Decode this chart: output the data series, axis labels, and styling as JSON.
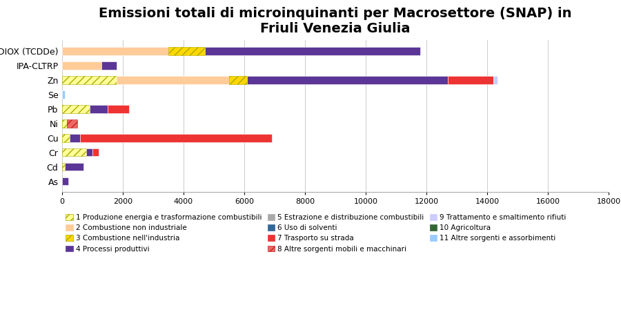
{
  "title": "Emissioni totali di microinquinanti per Macrosettore (SNAP) in\nFriuli Venezia Giulia",
  "categories": [
    "As",
    "Cd",
    "Cr",
    "Cu",
    "Ni",
    "Pb",
    "Se",
    "Zn",
    "IPA-CLTRP",
    "DIOX (TCDDe)"
  ],
  "xlim": [
    0,
    18000
  ],
  "xticks": [
    0,
    2000,
    4000,
    6000,
    8000,
    10000,
    12000,
    14000,
    16000,
    18000
  ],
  "segments": [
    {
      "label": "1 Produzione energia e trasformazione combustibili",
      "color": "#FFFF99",
      "hatch": "///",
      "edgecolor": "#AAAA00",
      "values": [
        0,
        100,
        800,
        250,
        150,
        900,
        0,
        1800,
        0,
        0
      ]
    },
    {
      "label": "2 Combustione non industriale",
      "color": "#FFCC99",
      "hatch": "",
      "edgecolor": "#FFCC99",
      "values": [
        0,
        0,
        0,
        0,
        0,
        0,
        0,
        3700,
        1300,
        3500
      ]
    },
    {
      "label": "3 Combustione nell'industria",
      "color": "#FFD700",
      "hatch": "///",
      "edgecolor": "#AAAA00",
      "values": [
        0,
        0,
        0,
        0,
        0,
        0,
        0,
        600,
        0,
        1200
      ]
    },
    {
      "label": "4 Processi produttivi",
      "color": "#5B3696",
      "hatch": "",
      "edgecolor": "#5B3696",
      "values": [
        200,
        600,
        200,
        350,
        0,
        600,
        0,
        6600,
        500,
        7100
      ]
    },
    {
      "label": "5 Estrazione e distribuzione combustibili",
      "color": "#AAAAAA",
      "hatch": "",
      "edgecolor": "#AAAAAA",
      "values": [
        0,
        0,
        0,
        0,
        0,
        0,
        0,
        0,
        0,
        0
      ]
    },
    {
      "label": "6 Uso di solventi",
      "color": "#336699",
      "hatch": "",
      "edgecolor": "#336699",
      "values": [
        0,
        0,
        0,
        0,
        0,
        0,
        0,
        0,
        0,
        0
      ]
    },
    {
      "label": "7 Trasporto su strada",
      "color": "#EE3333",
      "hatch": "",
      "edgecolor": "#EE3333",
      "values": [
        0,
        0,
        200,
        6300,
        0,
        700,
        0,
        1500,
        0,
        0
      ]
    },
    {
      "label": "8 Altre sorgenti mobili e macchinari",
      "color": "#EE6666",
      "hatch": "///",
      "edgecolor": "#CC2222",
      "values": [
        0,
        0,
        0,
        0,
        350,
        0,
        0,
        0,
        0,
        0
      ]
    },
    {
      "label": "9 Trattamento e smaltimento rifiuti",
      "color": "#CCCCFF",
      "hatch": "",
      "edgecolor": "#CCCCFF",
      "values": [
        0,
        0,
        0,
        0,
        0,
        0,
        0,
        150,
        0,
        0
      ]
    },
    {
      "label": "10 Agricoltura",
      "color": "#336633",
      "hatch": "",
      "edgecolor": "#336633",
      "values": [
        0,
        0,
        0,
        0,
        0,
        0,
        0,
        0,
        0,
        0
      ]
    },
    {
      "label": "11 Altre sorgenti e assorbimenti",
      "color": "#99CCFF",
      "hatch": "",
      "edgecolor": "#99CCFF",
      "values": [
        0,
        0,
        0,
        0,
        0,
        0,
        100,
        0,
        0,
        0
      ]
    }
  ],
  "background_color": "#FFFFFF",
  "title_fontsize": 14,
  "legend_fontsize": 7.5,
  "bar_height": 0.55
}
